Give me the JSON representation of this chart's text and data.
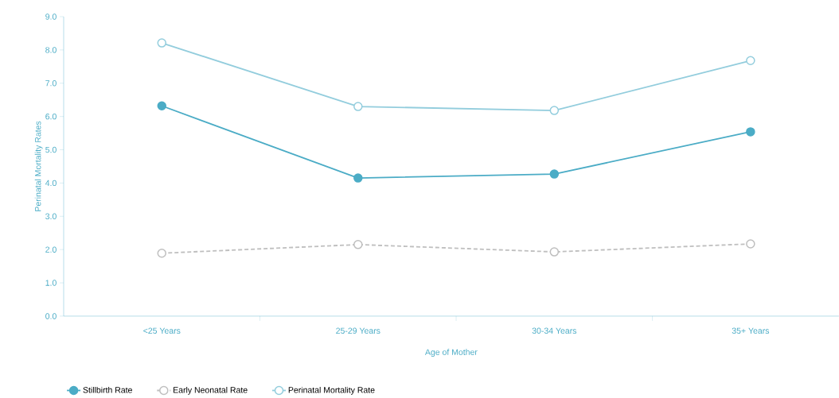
{
  "chart_data": {
    "type": "line",
    "xlabel": "Age of Mother",
    "ylabel": "Perinatal Mortality Rates",
    "categories": [
      "<25 Years",
      "25-29 Years",
      "30-34 Years",
      "35+ Years"
    ],
    "series": [
      {
        "name": "Stillbirth Rate",
        "color": "#4bacc6",
        "values": [
          6.32,
          4.15,
          4.27,
          5.54
        ],
        "line_style": "solid"
      },
      {
        "name": "Early Neonatal Rate",
        "color": "#bfbfbf",
        "values": [
          1.89,
          2.15,
          1.93,
          2.17
        ],
        "line_style": "dashed"
      },
      {
        "name": "Perinatal Mortality Rate",
        "color": "#93cddd",
        "values": [
          8.21,
          6.3,
          6.18,
          7.68
        ],
        "line_style": "solid"
      }
    ],
    "ylim": [
      0,
      9
    ],
    "yticks": [
      {
        "value": 0,
        "label": "0.0"
      },
      {
        "value": 1,
        "label": "1.0"
      },
      {
        "value": 2,
        "label": "2.0"
      },
      {
        "value": 3,
        "label": "3.0"
      },
      {
        "value": 4,
        "label": "4.0"
      },
      {
        "value": 5,
        "label": "5.0"
      },
      {
        "value": 6,
        "label": "6.0"
      },
      {
        "value": 7,
        "label": "7.0"
      },
      {
        "value": 8,
        "label": "8.0"
      },
      {
        "value": 9,
        "label": "9.0"
      }
    ],
    "marker": "circle",
    "legend": "bottom",
    "grid": false
  }
}
